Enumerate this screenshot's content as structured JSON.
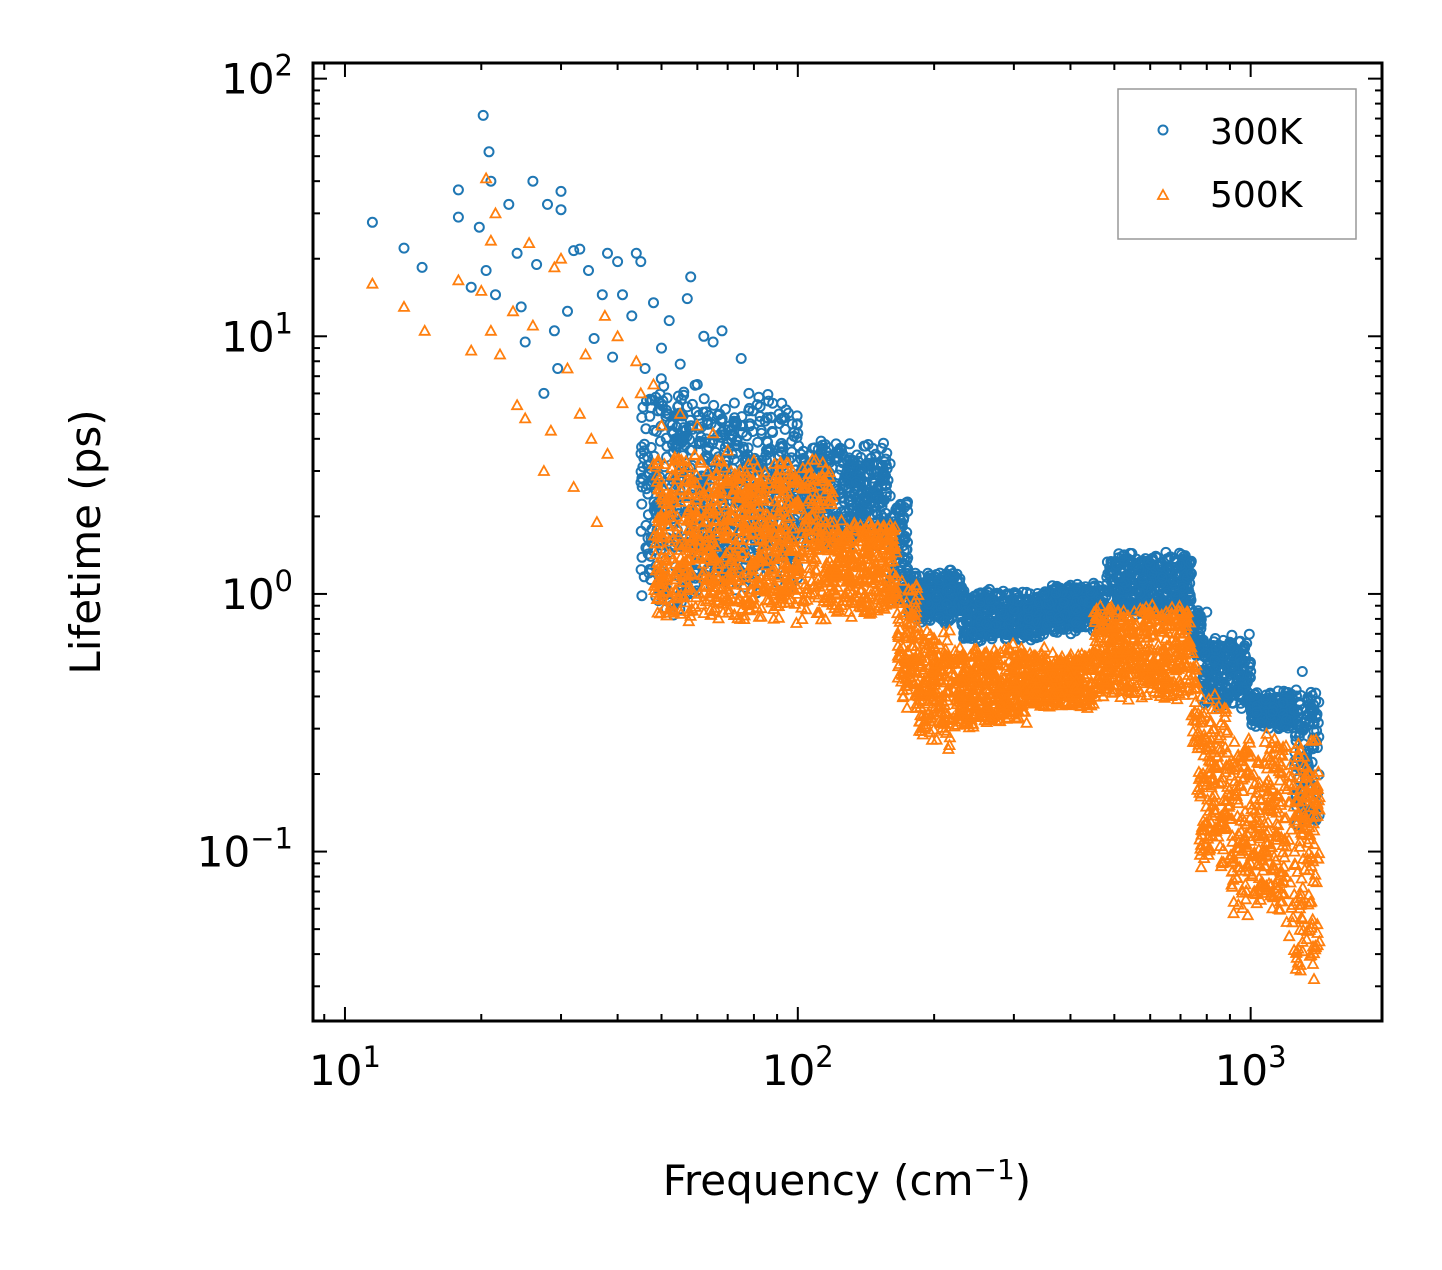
{
  "chart_data": {
    "type": "scatter",
    "xscale": "log",
    "yscale": "log",
    "xlabel": "Frequency (cm",
    "xlabel_sup": "−1",
    "xlabel_end": ")",
    "ylabel": "Lifetime (ps)",
    "xlim": [
      8.5,
      1950
    ],
    "ylim": [
      0.022,
      115
    ],
    "x_ticks": [
      {
        "value": 10,
        "base": "10",
        "exp": "1"
      },
      {
        "value": 100,
        "base": "10",
        "exp": "2"
      },
      {
        "value": 1000,
        "base": "10",
        "exp": "3"
      }
    ],
    "y_ticks": [
      {
        "value": 0.1,
        "base": "10",
        "exp": "−1"
      },
      {
        "value": 1,
        "base": "10",
        "exp": "0"
      },
      {
        "value": 10,
        "base": "10",
        "exp": "1"
      },
      {
        "value": 100,
        "base": "10",
        "exp": "2"
      }
    ],
    "legend_position": "top-right",
    "series": [
      {
        "name": "300K",
        "marker": "circle",
        "color": "#1f77b4",
        "points": [
          [
            11.5,
            27.7
          ],
          [
            13.5,
            22.0
          ],
          [
            14.8,
            18.5
          ],
          [
            17.8,
            37.0
          ],
          [
            17.8,
            29.0
          ],
          [
            19.0,
            15.5
          ],
          [
            19.8,
            26.5
          ],
          [
            20.2,
            72.0
          ],
          [
            20.5,
            18.0
          ],
          [
            20.8,
            52.0
          ],
          [
            21.0,
            40.0
          ],
          [
            21.5,
            14.5
          ],
          [
            23.0,
            32.5
          ],
          [
            24.0,
            21.0
          ],
          [
            24.5,
            13.0
          ],
          [
            25.0,
            9.5
          ],
          [
            26.0,
            40.0
          ],
          [
            26.5,
            19.0
          ],
          [
            27.5,
            6.0
          ],
          [
            28.0,
            32.5
          ],
          [
            29.0,
            10.5
          ],
          [
            29.5,
            7.5
          ],
          [
            30.0,
            36.5
          ],
          [
            30.0,
            31.0
          ],
          [
            31.0,
            12.5
          ],
          [
            32.0,
            21.5
          ],
          [
            33.0,
            21.8
          ],
          [
            34.5,
            18.0
          ],
          [
            35.5,
            9.8
          ],
          [
            37.0,
            14.5
          ],
          [
            38.0,
            21.0
          ],
          [
            39.0,
            8.3
          ],
          [
            40.0,
            19.5
          ],
          [
            41.0,
            14.5
          ],
          [
            43.0,
            12.0
          ],
          [
            44.0,
            21.0
          ],
          [
            45.0,
            19.5
          ],
          [
            46.0,
            7.5
          ],
          [
            48.0,
            13.5
          ],
          [
            50.0,
            9.0
          ],
          [
            52.0,
            11.5
          ],
          [
            55.0,
            7.8
          ],
          [
            57.0,
            14.0
          ],
          [
            58.0,
            17.0
          ],
          [
            60.0,
            6.5
          ],
          [
            62.0,
            10.0
          ],
          [
            65.0,
            9.5
          ],
          [
            68.0,
            10.5
          ],
          [
            75.0,
            8.2
          ],
          [
            78.0,
            6.0
          ],
          [
            82.0,
            5.8
          ],
          [
            88.0,
            5.5
          ],
          [
            92.0,
            4.8
          ],
          [
            100.0,
            4.2
          ],
          [
            115.0,
            3.8
          ],
          [
            130.0,
            3.3
          ],
          [
            150.0,
            3.0
          ],
          [
            160.0,
            2.4
          ],
          [
            165.0,
            1.8
          ],
          [
            175.0,
            1.2
          ],
          [
            190.0,
            1.05
          ],
          [
            220.0,
            1.2
          ],
          [
            250.0,
            1.0
          ],
          [
            300.0,
            0.95
          ],
          [
            350.0,
            1.0
          ],
          [
            400.0,
            1.08
          ],
          [
            450.0,
            1.1
          ],
          [
            520.0,
            1.4
          ],
          [
            600.0,
            1.3
          ],
          [
            650.0,
            1.45
          ],
          [
            700.0,
            1.3
          ],
          [
            740.0,
            1.2
          ],
          [
            800.0,
            0.85
          ],
          [
            900.0,
            0.62
          ],
          [
            1000.0,
            0.5
          ],
          [
            1150.0,
            0.42
          ],
          [
            1300.0,
            0.5
          ],
          [
            1350.0,
            0.32
          ],
          [
            1400.0,
            0.15
          ]
        ],
        "bands": [
          [
            45,
            60,
            0.8,
            7.0
          ],
          [
            60,
            100,
            1.0,
            6.0
          ],
          [
            100,
            160,
            1.5,
            4.0
          ],
          [
            160,
            175,
            0.9,
            2.5
          ],
          [
            175,
            230,
            0.75,
            1.25
          ],
          [
            230,
            350,
            0.65,
            1.05
          ],
          [
            350,
            480,
            0.7,
            1.1
          ],
          [
            480,
            740,
            0.8,
            1.45
          ],
          [
            740,
            780,
            0.55,
            0.9
          ],
          [
            780,
            1000,
            0.35,
            0.7
          ],
          [
            1000,
            1250,
            0.3,
            0.42
          ],
          [
            1250,
            1420,
            0.12,
            0.45
          ]
        ]
      },
      {
        "name": "500K",
        "marker": "triangle",
        "color": "#ff7f0e",
        "points": [
          [
            11.5,
            16.0
          ],
          [
            13.5,
            13.0
          ],
          [
            15.0,
            10.5
          ],
          [
            17.8,
            16.5
          ],
          [
            19.0,
            8.8
          ],
          [
            20.0,
            15.0
          ],
          [
            20.5,
            41.0
          ],
          [
            21.0,
            23.5
          ],
          [
            21.0,
            10.5
          ],
          [
            21.5,
            30.0
          ],
          [
            22.0,
            8.5
          ],
          [
            23.5,
            12.5
          ],
          [
            24.0,
            5.4
          ],
          [
            25.0,
            4.8
          ],
          [
            25.5,
            23.0
          ],
          [
            26.0,
            11.0
          ],
          [
            27.5,
            3.0
          ],
          [
            28.5,
            4.3
          ],
          [
            29.0,
            18.5
          ],
          [
            30.0,
            20.0
          ],
          [
            31.0,
            7.5
          ],
          [
            32.0,
            2.6
          ],
          [
            33.0,
            5.0
          ],
          [
            34.0,
            8.5
          ],
          [
            35.0,
            4.0
          ],
          [
            36.0,
            1.9
          ],
          [
            37.5,
            12.0
          ],
          [
            38.0,
            3.5
          ],
          [
            40.0,
            10.0
          ],
          [
            41.0,
            5.5
          ],
          [
            44.0,
            8.0
          ],
          [
            45.0,
            6.0
          ],
          [
            48.0,
            6.5
          ],
          [
            50.0,
            4.5
          ],
          [
            55.0,
            5.0
          ],
          [
            60.0,
            4.5
          ],
          [
            65.0,
            4.2
          ],
          [
            70.0,
            3.6
          ],
          [
            80.0,
            3.3
          ],
          [
            90.0,
            2.6
          ],
          [
            100.0,
            2.3
          ],
          [
            120.0,
            1.9
          ],
          [
            150.0,
            1.6
          ],
          [
            165.0,
            1.0
          ],
          [
            180.0,
            0.55
          ],
          [
            215.0,
            0.25
          ],
          [
            250.0,
            0.55
          ],
          [
            350.0,
            0.62
          ],
          [
            450.0,
            0.55
          ],
          [
            550.0,
            0.72
          ],
          [
            650.0,
            0.85
          ],
          [
            720.0,
            0.75
          ],
          [
            760.0,
            0.45
          ],
          [
            850.0,
            0.25
          ],
          [
            950.0,
            0.18
          ],
          [
            1100.0,
            0.15
          ],
          [
            1250.0,
            0.1
          ],
          [
            1380.0,
            0.032
          ]
        ],
        "bands": [
          [
            48,
            60,
            0.7,
            4.0
          ],
          [
            60,
            120,
            0.75,
            3.5
          ],
          [
            120,
            165,
            0.8,
            2.0
          ],
          [
            165,
            185,
            0.33,
            1.2
          ],
          [
            185,
            220,
            0.25,
            0.75
          ],
          [
            220,
            320,
            0.3,
            0.65
          ],
          [
            320,
            450,
            0.35,
            0.6
          ],
          [
            450,
            740,
            0.38,
            0.95
          ],
          [
            740,
            760,
            0.25,
            0.6
          ],
          [
            760,
            900,
            0.08,
            0.45
          ],
          [
            900,
            1200,
            0.055,
            0.3
          ],
          [
            1200,
            1420,
            0.032,
            0.3
          ]
        ]
      }
    ]
  }
}
